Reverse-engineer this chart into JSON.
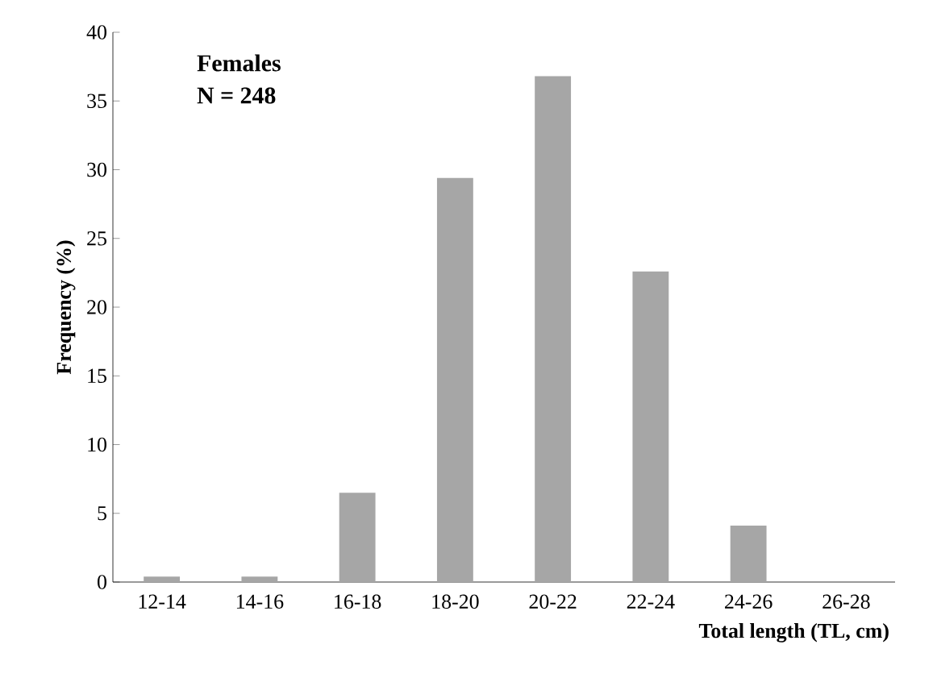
{
  "chart_data": {
    "type": "bar",
    "categories": [
      "12-14",
      "14-16",
      "16-18",
      "18-20",
      "20-22",
      "22-24",
      "24-26",
      "26-28"
    ],
    "values": [
      0.4,
      0.4,
      6.5,
      29.4,
      36.8,
      22.6,
      4.1,
      0
    ],
    "color": "#a6a6a6",
    "ylim": [
      0,
      40
    ],
    "yticks": [
      0,
      5,
      10,
      15,
      20,
      25,
      30,
      35,
      40
    ],
    "xlabel": "Total length (TL, cm)",
    "ylabel": "Frequency (%)",
    "annotations": [
      "Females",
      "N = 248"
    ]
  }
}
